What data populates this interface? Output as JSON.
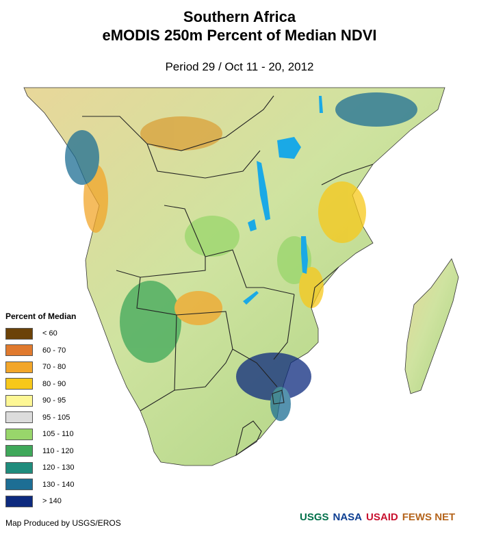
{
  "header": {
    "title_line1": "Southern Africa",
    "title_line2": "eMODIS 250m Percent of Median NDVI",
    "period": "Period 29 / Oct 11 - 20, 2012"
  },
  "legend": {
    "title": "Percent of Median",
    "items": [
      {
        "label": "< 60",
        "color": "#6b4208"
      },
      {
        "label": "60 - 70",
        "color": "#e07a2e"
      },
      {
        "label": "70 - 80",
        "color": "#f2a62a"
      },
      {
        "label": "80 - 90",
        "color": "#f7c81a"
      },
      {
        "label": "90 - 95",
        "color": "#fdf795"
      },
      {
        "label": "95 - 105",
        "color": "#dcdcdc"
      },
      {
        "label": "105 - 110",
        "color": "#98d66b"
      },
      {
        "label": "110 - 120",
        "color": "#3fa85a"
      },
      {
        "label": "120 - 130",
        "color": "#1f8c7c"
      },
      {
        "label": "130 - 140",
        "color": "#1d6e94"
      },
      {
        "label": "> 140",
        "color": "#0d2a7e"
      }
    ]
  },
  "footer": {
    "credit": "Map Produced by USGS/EROS",
    "logos": [
      {
        "name": "USGS",
        "text": "USGS",
        "color": "#00704a"
      },
      {
        "name": "NASA",
        "text": "NASA",
        "color": "#0b3d91"
      },
      {
        "name": "USAID",
        "text": "USAID",
        "color": "#c8102e"
      },
      {
        "name": "FEWS NET",
        "text": "FEWS NET",
        "color": "#b5651d"
      }
    ]
  },
  "map": {
    "water_color": "#1aa9e6",
    "land_base_color": "#d9e8a8",
    "border_color": "#222222"
  }
}
